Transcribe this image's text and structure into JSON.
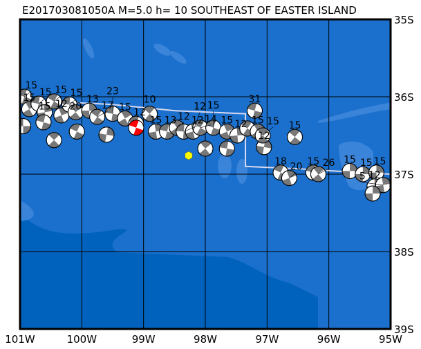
{
  "title": "E201703081050A M=5.0 h= 10 SOUTHEAST OF EASTER ISLAND",
  "map": {
    "lon_range": [
      -101,
      -95
    ],
    "lat_range": [
      -39,
      -35
    ],
    "x_ticks": [
      {
        "lon": -101,
        "label": "101W"
      },
      {
        "lon": -100,
        "label": "100W"
      },
      {
        "lon": -99,
        "label": "99W"
      },
      {
        "lon": -98,
        "label": "98W"
      },
      {
        "lon": -97,
        "label": "97W"
      },
      {
        "lon": -96,
        "label": "96W"
      },
      {
        "lon": -95,
        "label": "95W"
      }
    ],
    "y_ticks": [
      {
        "lat": -35,
        "label": "35S"
      },
      {
        "lat": -36,
        "label": "36S"
      },
      {
        "lat": -37,
        "label": "37S"
      },
      {
        "lat": -38,
        "label": "38S"
      },
      {
        "lat": -39,
        "label": "39S"
      }
    ],
    "grid": true,
    "colors": {
      "ocean": "#1a70cc",
      "ocean_deep": "#0062bc",
      "ocean_shallow": "#3a84da",
      "grid": "#000000",
      "plate_boundary": "#d8d8f0",
      "mechanism_fill": "#787878",
      "event_highlight": "#ff0000",
      "epicenter": "#ffff00"
    },
    "epicenter": {
      "lon": -98.27,
      "lat": -36.76
    },
    "plate_boundary": [
      [
        -101,
        -36.04
      ],
      [
        -99.5,
        -36.1
      ],
      [
        -98.5,
        -36.18
      ],
      [
        -97.35,
        -36.22
      ],
      [
        -97.35,
        -36.9
      ],
      [
        -96.5,
        -36.93
      ],
      [
        -95.5,
        -36.98
      ],
      [
        -95,
        -37.0
      ]
    ],
    "events": [
      {
        "lon": -100.93,
        "lat": -36.0,
        "depth": "15",
        "strike": 20
      },
      {
        "lon": -100.85,
        "lat": -36.16,
        "depth": "15",
        "strike": 60
      },
      {
        "lon": -100.7,
        "lat": -36.09,
        "depth": "15",
        "strike": 10
      },
      {
        "lon": -100.6,
        "lat": -36.2,
        "depth": "15",
        "strike": 80
      },
      {
        "lon": -100.45,
        "lat": -36.06,
        "depth": "15",
        "strike": 30
      },
      {
        "lon": -100.95,
        "lat": -36.38,
        "depth": "",
        "strike": 0
      },
      {
        "lon": -100.45,
        "lat": -36.56,
        "depth": "",
        "strike": 45
      },
      {
        "lon": -100.62,
        "lat": -36.33,
        "depth": "",
        "strike": 15
      },
      {
        "lon": -100.33,
        "lat": -36.24,
        "depth": "12",
        "strike": 70
      },
      {
        "lon": -100.2,
        "lat": -36.1,
        "depth": "15",
        "strike": 5
      },
      {
        "lon": -100.1,
        "lat": -36.2,
        "depth": "20",
        "strike": 50
      },
      {
        "lon": -100.08,
        "lat": -36.45,
        "depth": "",
        "strike": 25
      },
      {
        "lon": -99.88,
        "lat": -36.18,
        "depth": "13",
        "strike": 90
      },
      {
        "lon": -99.75,
        "lat": -36.26,
        "depth": "17",
        "strike": 35
      },
      {
        "lon": -99.6,
        "lat": -36.49,
        "depth": "",
        "strike": 100
      },
      {
        "lon": -99.5,
        "lat": -36.22,
        "depth": "23",
        "strike": 10
      },
      {
        "lon": -99.3,
        "lat": -36.28,
        "depth": "15",
        "strike": 60
      },
      {
        "lon": -99.12,
        "lat": -36.35,
        "depth": "12",
        "strike": 20
      },
      {
        "lon": -98.9,
        "lat": -36.22,
        "depth": "10",
        "strike": 40
      },
      {
        "lon": -98.8,
        "lat": -36.45,
        "depth": "15",
        "strike": 80
      },
      {
        "lon": -98.62,
        "lat": -36.45,
        "depth": "13",
        "strike": 15
      },
      {
        "lon": -98.46,
        "lat": -36.4,
        "depth": "12",
        "strike": 55
      },
      {
        "lon": -98.35,
        "lat": -36.45,
        "depth": "12",
        "strike": 5
      },
      {
        "lon": -98.2,
        "lat": -36.45,
        "depth": "12",
        "strike": 75
      },
      {
        "lon": -98.08,
        "lat": -36.4,
        "depth": "14",
        "strike": 30
      },
      {
        "lon": -98.0,
        "lat": -36.67,
        "depth": "",
        "strike": 50
      },
      {
        "lon": -97.87,
        "lat": -36.4,
        "depth": "15",
        "strike": 20
      },
      {
        "lon": -97.65,
        "lat": -36.45,
        "depth": "15",
        "strike": 65
      },
      {
        "lon": -97.65,
        "lat": -36.67,
        "depth": "",
        "strike": 10
      },
      {
        "lon": -97.48,
        "lat": -36.5,
        "depth": "12",
        "strike": 85
      },
      {
        "lon": -97.32,
        "lat": -36.41,
        "depth": "",
        "strike": 35
      },
      {
        "lon": -97.2,
        "lat": -36.18,
        "depth": "31",
        "strike": 15
      },
      {
        "lon": -97.15,
        "lat": -36.45,
        "depth": "15",
        "strike": 60
      },
      {
        "lon": -97.05,
        "lat": -36.65,
        "depth": "12",
        "strike": 100
      },
      {
        "lon": -97.07,
        "lat": -36.5,
        "depth": "15",
        "strike": 45
      },
      {
        "lon": -96.55,
        "lat": -36.52,
        "depth": "15",
        "strike": 40
      },
      {
        "lon": -96.78,
        "lat": -36.98,
        "depth": "18",
        "strike": 25
      },
      {
        "lon": -96.64,
        "lat": -37.05,
        "depth": "20",
        "strike": 70
      },
      {
        "lon": -96.25,
        "lat": -36.98,
        "depth": "15",
        "strike": 15
      },
      {
        "lon": -96.17,
        "lat": -37.0,
        "depth": "26",
        "strike": 50
      },
      {
        "lon": -95.66,
        "lat": -36.96,
        "depth": "15",
        "strike": 90
      },
      {
        "lon": -95.45,
        "lat": -37.0,
        "depth": "15",
        "strike": 90
      },
      {
        "lon": -95.23,
        "lat": -36.98,
        "depth": "15",
        "strike": 90
      },
      {
        "lon": -95.26,
        "lat": -37.16,
        "depth": "12",
        "strike": 90
      },
      {
        "lon": -95.12,
        "lat": -37.14,
        "depth": "5",
        "strike": 80
      },
      {
        "lon": -95.29,
        "lat": -37.25,
        "depth": "",
        "strike": 90
      }
    ],
    "highlight_event": {
      "lon": -99.12,
      "lat": -36.4,
      "strike": 20
    }
  }
}
